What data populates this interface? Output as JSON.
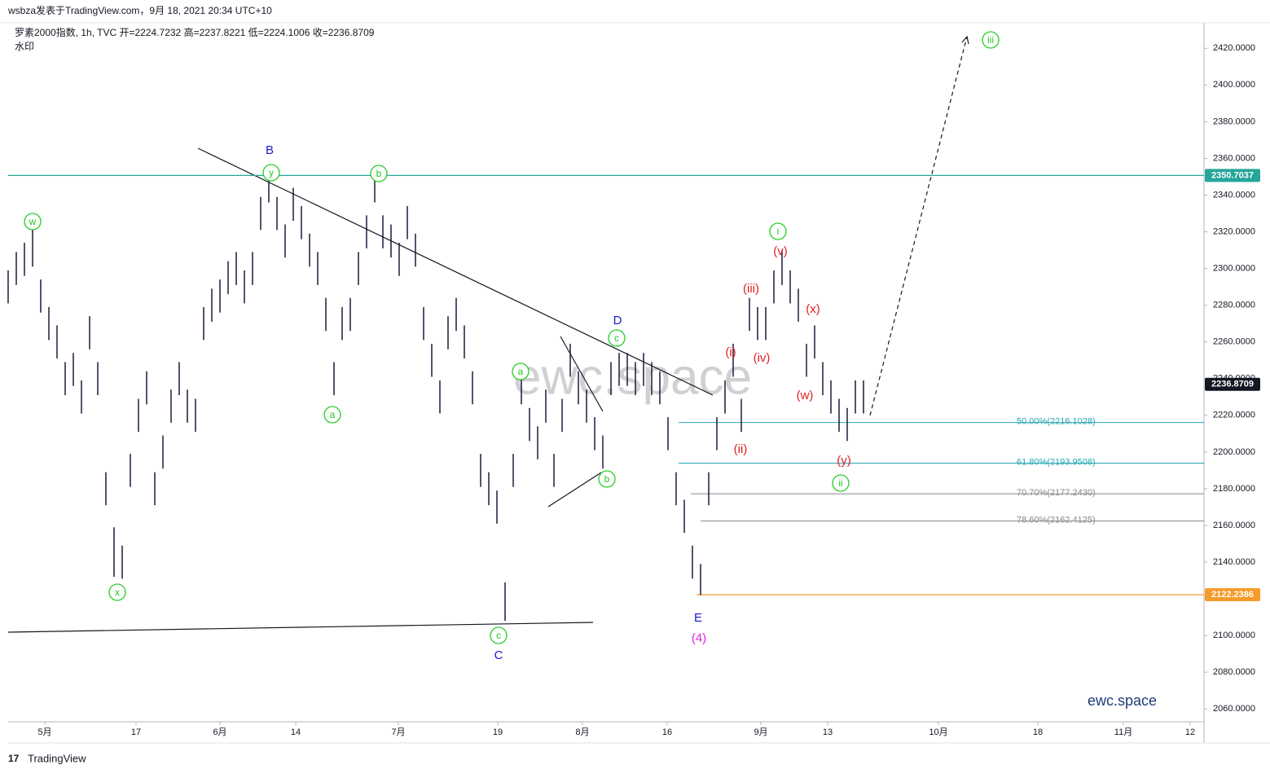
{
  "header": {
    "publisher": "wsbza发表于TradingView.com，9月 18, 2021 20:34 UTC+10",
    "footer": "TradingView"
  },
  "chart_data": {
    "type": "ohlc",
    "title": "罗素2000指数, 1h, TVC 开=2224.7232 高=2237.8221 低=2224.1006 收=2236.8709",
    "subtitle": "水印",
    "watermark": "ewc.space",
    "brand": "ewc.space",
    "color": "#1a1a3a",
    "x": [
      0,
      10,
      20,
      30,
      40,
      50,
      60,
      70,
      80,
      90,
      100,
      110,
      120,
      130,
      140,
      150,
      160,
      170,
      180,
      190,
      200,
      210,
      220,
      230,
      240,
      250,
      260,
      270,
      280,
      290,
      300,
      310,
      320,
      330,
      340,
      350,
      360,
      370,
      380,
      390,
      400,
      410,
      420,
      430,
      440,
      450,
      460,
      470,
      480,
      490,
      500,
      510,
      520,
      530,
      540,
      550,
      560,
      570,
      580,
      590,
      600,
      610,
      620,
      630,
      640,
      650,
      660,
      670,
      680,
      690,
      700,
      710,
      720,
      730,
      740,
      750,
      760,
      770,
      780,
      790,
      800,
      810,
      820,
      830,
      840,
      850,
      860,
      870,
      880,
      890,
      900,
      910,
      920,
      930,
      940,
      950,
      960,
      970,
      980,
      990,
      1000,
      1010,
      1020,
      1030,
      1040,
      1050
    ],
    "high": [
      2299,
      2309,
      2314,
      2322,
      2294,
      2279,
      2269,
      2249,
      2254,
      2239,
      2274,
      2249,
      2189,
      2159,
      2149,
      2199,
      2229,
      2244,
      2189,
      2209,
      2234,
      2249,
      2234,
      2229,
      2279,
      2289,
      2294,
      2304,
      2309,
      2299,
      2309,
      2339,
      2350,
      2339,
      2324,
      2344,
      2334,
      2319,
      2309,
      2284,
      2249,
      2279,
      2284,
      2309,
      2329,
      2350,
      2329,
      2324,
      2314,
      2334,
      2319,
      2279,
      2259,
      2239,
      2274,
      2284,
      2269,
      2244,
      2199,
      2189,
      2179,
      2129,
      2199,
      2244,
      2224,
      2214,
      2234,
      2199,
      2229,
      2259,
      2244,
      2234,
      2219,
      2209,
      2249,
      2254,
      2254,
      2249,
      2254,
      2249,
      2244,
      2219,
      2189,
      2174,
      2149,
      2139,
      2189,
      2219,
      2239,
      2259,
      2229,
      2284,
      2279,
      2279,
      2299,
      2310,
      2299,
      2289,
      2259,
      2269,
      2249,
      2239,
      2229,
      2224,
      2239,
      2239
    ],
    "low": [
      2281,
      2291,
      2296,
      2301,
      2276,
      2261,
      2251,
      2231,
      2236,
      2221,
      2256,
      2231,
      2171,
      2132,
      2131,
      2181,
      2211,
      2226,
      2171,
      2191,
      2216,
      2231,
      2216,
      2211,
      2261,
      2271,
      2276,
      2286,
      2291,
      2281,
      2291,
      2321,
      2336,
      2321,
      2306,
      2326,
      2316,
      2301,
      2291,
      2266,
      2231,
      2261,
      2266,
      2291,
      2311,
      2336,
      2311,
      2306,
      2296,
      2316,
      2301,
      2261,
      2241,
      2221,
      2256,
      2266,
      2251,
      2226,
      2181,
      2171,
      2161,
      2108,
      2181,
      2226,
      2206,
      2196,
      2216,
      2181,
      2211,
      2241,
      2226,
      2216,
      2201,
      2191,
      2231,
      2236,
      2236,
      2231,
      2236,
      2231,
      2226,
      2201,
      2171,
      2156,
      2131,
      2122,
      2171,
      2201,
      2221,
      2241,
      2211,
      2266,
      2261,
      2261,
      2281,
      2291,
      2281,
      2271,
      2241,
      2251,
      2231,
      2221,
      2211,
      2206,
      2221,
      2221
    ],
    "xlim": [
      0,
      1468
    ],
    "xticks": [
      {
        "value": 45,
        "label": "5月"
      },
      {
        "value": 157,
        "label": "17"
      },
      {
        "value": 260,
        "label": "6月"
      },
      {
        "value": 353,
        "label": "14"
      },
      {
        "value": 479,
        "label": "7月"
      },
      {
        "value": 601,
        "label": "19"
      },
      {
        "value": 705,
        "label": "8月"
      },
      {
        "value": 809,
        "label": "16"
      },
      {
        "value": 924,
        "label": "9月"
      },
      {
        "value": 1006,
        "label": "13"
      },
      {
        "value": 1142,
        "label": "10月"
      },
      {
        "value": 1264,
        "label": "18"
      },
      {
        "value": 1369,
        "label": "11月"
      },
      {
        "value": 1451,
        "label": "12"
      }
    ],
    "ylim": [
      2053,
      2433
    ],
    "yticks": [
      {
        "value": 2060,
        "label": "2060.0000"
      },
      {
        "value": 2080,
        "label": "2080.0000"
      },
      {
        "value": 2100,
        "label": "2100.0000"
      },
      {
        "value": 2120,
        "label": "2120.0000"
      },
      {
        "value": 2140,
        "label": "2140.0000"
      },
      {
        "value": 2160,
        "label": "2160.0000"
      },
      {
        "value": 2180,
        "label": "2180.0000"
      },
      {
        "value": 2200,
        "label": "2200.0000"
      },
      {
        "value": 2220,
        "label": "2220.0000"
      },
      {
        "value": 2240,
        "label": "2240.0000"
      },
      {
        "value": 2260,
        "label": "2260.0000"
      },
      {
        "value": 2280,
        "label": "2280.0000"
      },
      {
        "value": 2300,
        "label": "2300.0000"
      },
      {
        "value": 2320,
        "label": "2320.0000"
      },
      {
        "value": 2340,
        "label": "2340.0000"
      },
      {
        "value": 2360,
        "label": "2360.0000"
      },
      {
        "value": 2380,
        "label": "2380.0000"
      },
      {
        "value": 2400,
        "label": "2400.0000"
      },
      {
        "value": 2420,
        "label": "2420.0000"
      }
    ],
    "price_tags": [
      {
        "value": 2350.7037,
        "label": "2350.7037",
        "color": "#26a69a"
      },
      {
        "value": 2236.8709,
        "label": "2236.8709",
        "color": "#131722"
      },
      {
        "value": 2122.2386,
        "label": "2122.2386",
        "color": "#f59b2b"
      }
    ],
    "fib_levels": [
      {
        "value": 2216.1028,
        "label": "50.00%(2216.1028)",
        "color": "#26a6b4"
      },
      {
        "value": 2193.9508,
        "label": "61.80%(2193.9508)",
        "color": "#26a6b4"
      },
      {
        "value": 2177.243,
        "label": "70.70%(2177.2430)",
        "color": "#888888"
      },
      {
        "value": 2162.4125,
        "label": "78.60%(2162.4125)",
        "color": "#888888"
      }
    ],
    "annotations": [
      "w",
      "y",
      "b",
      "a",
      "x",
      "c",
      "a",
      "b",
      "c",
      "i",
      "ii",
      "iii",
      "B",
      "C",
      "D",
      "E",
      "(4)",
      "(v)",
      "(iii)",
      "(i)",
      "(iv)",
      "(ii)",
      "(x)",
      "(w)",
      "(y)"
    ]
  }
}
